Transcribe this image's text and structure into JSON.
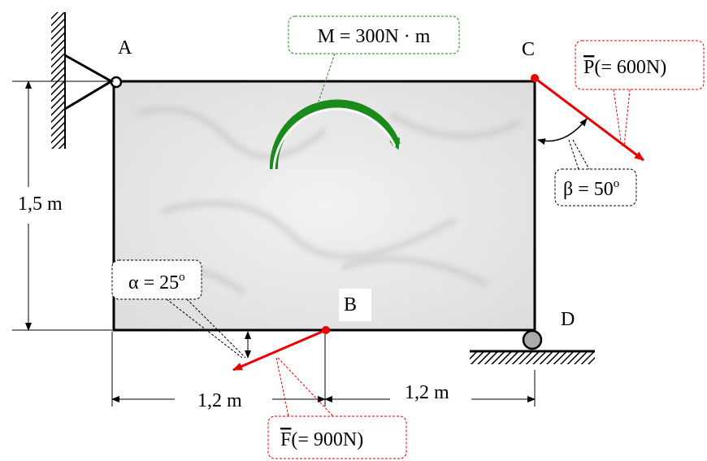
{
  "points": {
    "A": "A",
    "B": "B",
    "C": "C",
    "D": "D"
  },
  "moment": {
    "label": "M = 300N · m"
  },
  "force_P": {
    "symbol": "P",
    "value": "(= 600N)"
  },
  "force_F": {
    "symbol": "F",
    "value": "(= 900N)"
  },
  "angle_beta": {
    "text": "β = 50",
    "degree": "o"
  },
  "angle_alpha": {
    "text": "α = 25",
    "degree": "o"
  },
  "dimensions": {
    "height": "1,5 m",
    "left_width": "1,2 m",
    "right_width": "1,2 m"
  }
}
